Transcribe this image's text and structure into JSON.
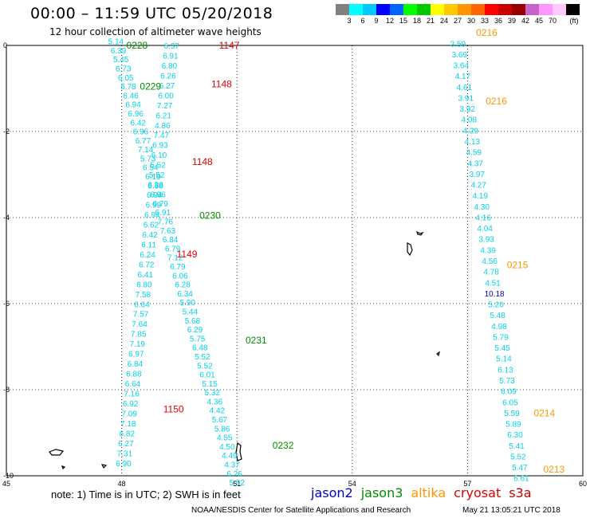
{
  "header": {
    "title": "00:00 – 11:59 UTC 05/20/2018",
    "subtitle": "12 hour collection of altimeter wave heights"
  },
  "legend": {
    "colors": [
      "#808080",
      "#00ffff",
      "#00c8ff",
      "#0000ff",
      "#0064ff",
      "#00ff00",
      "#00c800",
      "#ffff00",
      "#ffc800",
      "#ff9600",
      "#ff6400",
      "#ff0000",
      "#c80000",
      "#960000",
      "#c864c8",
      "#ff96ff",
      "#ffc8ff",
      "#000000"
    ],
    "labels": [
      "3",
      "6",
      "9",
      "12",
      "15",
      "18",
      "21",
      "24",
      "27",
      "30",
      "33",
      "36",
      "39",
      "42",
      "45",
      "70",
      "(ft)"
    ]
  },
  "axes": {
    "x_ticks": [
      "45",
      "48",
      "51",
      "54",
      "57",
      "60"
    ],
    "y_ticks": [
      "0",
      "-2",
      "-4",
      "-6",
      "-8",
      "-10"
    ]
  },
  "footer": {
    "note": "note: 1) Time is in UTC; 2) SWH is in feet",
    "satellites": [
      {
        "name": "jason2",
        "color": "#0000c8"
      },
      {
        "name": "jason3",
        "color": "#008c00"
      },
      {
        "name": "altika",
        "color": "#ff9600"
      },
      {
        "name": "cryosat",
        "color": "#e00000"
      },
      {
        "name": "s3a",
        "color": "#c80000"
      }
    ],
    "credit": "NOAA/NESDIS Center for Satellite Applications and Research",
    "stamp": "May 21 13:05:21 UTC 2018"
  },
  "track_times": [
    {
      "t": "0228",
      "lon": 48.4,
      "lat": 0.0,
      "c": "#008c00"
    },
    {
      "t": "1147",
      "lon": 50.8,
      "lat": 0.0,
      "c": "#e00000"
    },
    {
      "t": "0229",
      "lon": 48.75,
      "lat": -0.95,
      "c": "#008c00"
    },
    {
      "t": "1148",
      "lon": 50.6,
      "lat": -0.9,
      "c": "#e00000"
    },
    {
      "t": "1148",
      "lon": 50.1,
      "lat": -2.7,
      "c": "#e00000"
    },
    {
      "t": "0230",
      "lon": 50.3,
      "lat": -3.95,
      "c": "#008c00"
    },
    {
      "t": "1149",
      "lon": 49.7,
      "lat": -4.85,
      "c": "#e00000"
    },
    {
      "t": "0231",
      "lon": 51.5,
      "lat": -6.85,
      "c": "#008c00"
    },
    {
      "t": "1150",
      "lon": 49.35,
      "lat": -8.45,
      "c": "#e00000"
    },
    {
      "t": "0232",
      "lon": 52.2,
      "lat": -9.3,
      "c": "#008c00"
    },
    {
      "t": "0216",
      "lon": 57.5,
      "lat": 0.3,
      "c": "#ff9600"
    },
    {
      "t": "0216",
      "lon": 57.75,
      "lat": -1.3,
      "c": "#ff9600"
    },
    {
      "t": "0215",
      "lon": 58.3,
      "lat": -5.1,
      "c": "#ff9600"
    },
    {
      "t": "0214",
      "lon": 59.0,
      "lat": -8.55,
      "c": "#ff9600"
    },
    {
      "t": "0213",
      "lon": 59.25,
      "lat": -9.85,
      "c": "#ff9600"
    }
  ],
  "tracks": [
    {
      "name": "jason3 pass",
      "color": "#00d2e8",
      "lon0": 47.85,
      "lat0": 0.1,
      "lon1": 51.0,
      "lat1": -10.15,
      "values": [
        "5.14",
        "6.39",
        "5.45",
        "6.73",
        "6.05",
        "5.78",
        "6.46",
        "6.94",
        "6.96",
        "6.42",
        "6.96",
        "6.77",
        "7.14",
        "5.73",
        "6.54",
        "6.19",
        "6.38",
        "6.96",
        "6.79",
        "6.91",
        "7.76",
        "7.63",
        "6.84",
        "6.79",
        "7.12",
        "6.79",
        "6.06",
        "6.28",
        "6.34",
        "5.90",
        "5.44",
        "5.68",
        "6.29",
        "5.75",
        "6.48",
        "5.52",
        "5.52",
        "6.01",
        "5.15",
        "5.32",
        "4.36",
        "4.42",
        "5.67",
        "5.86",
        "4.55",
        "4.50",
        "4.49",
        "4.37",
        "6.26",
        "5.92"
      ]
    },
    {
      "name": "cryosat pass",
      "color": "#00d2e8",
      "lon0": 49.3,
      "lat0": 0.0,
      "lon1": 48.05,
      "lat1": -9.7,
      "values": [
        "6.37",
        "6.91",
        "6.80",
        "6.26",
        "6.27",
        "6.00",
        "7.27",
        "6.21",
        "4.86",
        "7.47",
        "6.93",
        "6.10",
        "5.52",
        "5.52",
        "6.86",
        "6.94",
        "6.99",
        "6.94",
        "6.62",
        "6.42",
        "6.11",
        "6.24",
        "6.72",
        "6.41",
        "6.80",
        "7.58",
        "6.64",
        "7.57",
        "7.64",
        "7.85",
        "7.19",
        "6.97",
        "6.84",
        "6.88",
        "6.64",
        "7.16",
        "6.92",
        "7.09",
        "7.18",
        "6.82",
        "6.27",
        "7.31",
        "6.90"
      ]
    },
    {
      "name": "altika pass",
      "color": "#00d2e8",
      "lon0": 56.75,
      "lat0": 0.05,
      "lon1": 58.4,
      "lat1": -10.05,
      "values": [
        "3.59",
        "3.69",
        "3.64",
        "4.17",
        "4.61",
        "3.91",
        "3.92",
        "4.08",
        "4.29",
        "4.13",
        "4.59",
        "4.37",
        "3.97",
        "4.27",
        "4.19",
        "4.30",
        "4.16",
        "4.04",
        "3.93",
        "4.39",
        "4.56",
        "4.78",
        "4.51",
        "10.18",
        "5.20",
        "5.48",
        "4.98",
        "5.79",
        "5.45",
        "5.14",
        "6.13",
        "5.73",
        "6.09",
        "6.05",
        "5.59",
        "5.89",
        "6.30",
        "5.41",
        "5.52",
        "5.47",
        "6.61"
      ]
    }
  ],
  "highlight": {
    "track": 2,
    "index": 23,
    "color": "#0000c8"
  }
}
